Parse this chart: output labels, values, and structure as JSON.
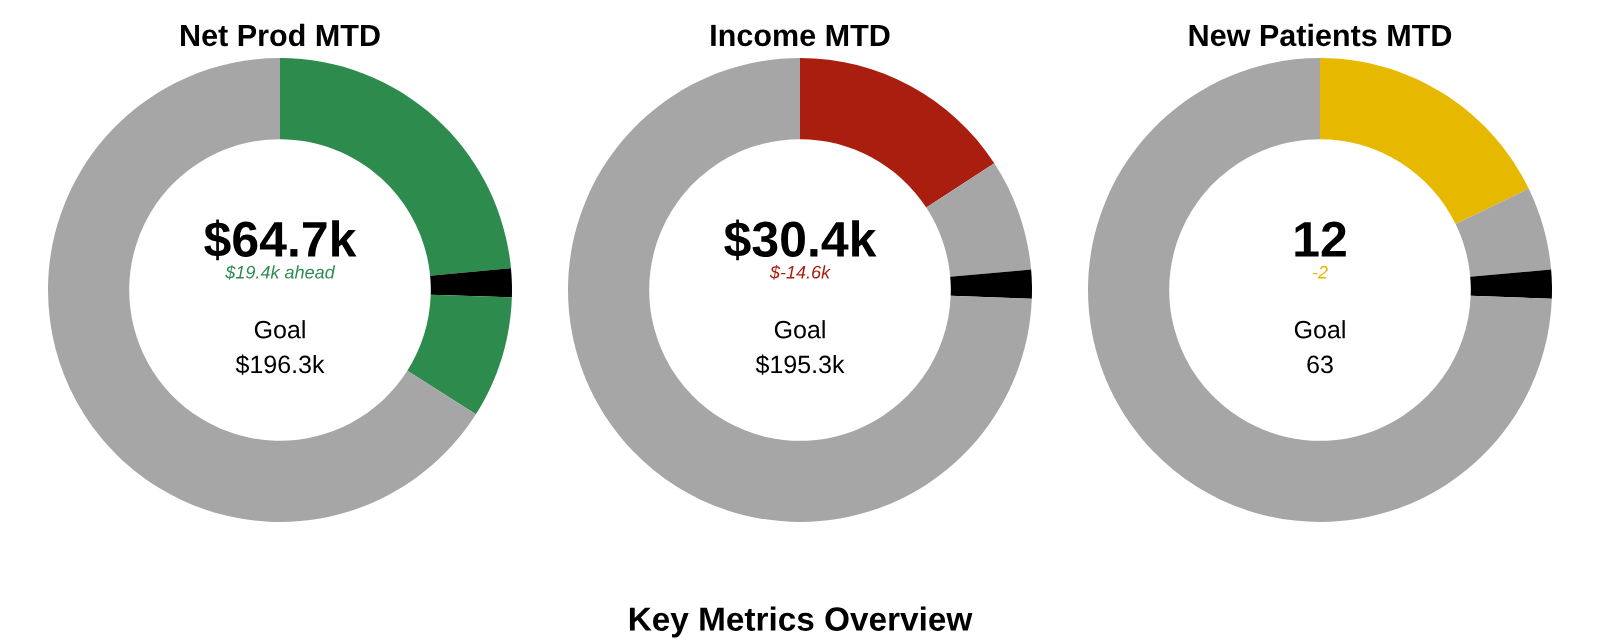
{
  "chart_data": [
    {
      "type": "donut",
      "title": "Net Prod MTD",
      "categories": [
        null,
        null,
        null,
        null
      ],
      "values": [
        23.5,
        2,
        8.5,
        66
      ],
      "colors": [
        "#2e8b4e",
        "#000000",
        "#2e8b4e",
        "#a6a6a6"
      ],
      "annotations": [
        "$64.7k",
        "$19.4k ahead",
        "Goal",
        "$196.3k"
      ]
    },
    {
      "type": "donut",
      "title": "Income MTD",
      "categories": [
        null,
        null,
        null,
        null
      ],
      "values": [
        15.8,
        7.8,
        2,
        74.4
      ],
      "colors": [
        "#a91e0f",
        "#a6a6a6",
        "#000000",
        "#a6a6a6"
      ],
      "annotations": [
        "$30.4k",
        "$-14.6k",
        "Goal",
        "$195.3k",
        "Key Metrics Overview"
      ]
    },
    {
      "type": "donut",
      "title": "New Patients MTD",
      "categories": [
        null,
        null,
        null,
        null
      ],
      "values": [
        17.8,
        5.8,
        2,
        74.4
      ],
      "colors": [
        "#e6b800",
        "#a6a6a6",
        "#000000",
        "#a6a6a6"
      ],
      "annotations": [
        "12",
        "-2",
        "Goal",
        "63"
      ]
    }
  ]
}
